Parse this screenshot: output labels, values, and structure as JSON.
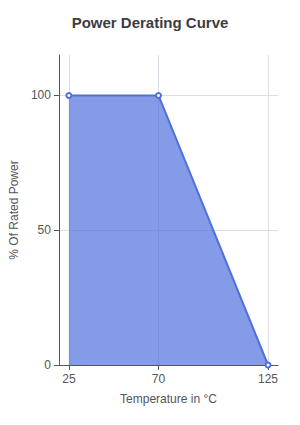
{
  "chart_data": {
    "type": "area",
    "title": "Power Derating Curve",
    "x": [
      25,
      70,
      125
    ],
    "values": [
      100,
      100,
      0
    ],
    "xlabel": "Temperature in °C",
    "ylabel": "% Of Rated Power",
    "xlim": [
      20,
      130
    ],
    "ylim": [
      0,
      115
    ],
    "xticks": [
      25,
      70,
      125
    ],
    "yticks": [
      0,
      50,
      100
    ],
    "grid": true
  }
}
